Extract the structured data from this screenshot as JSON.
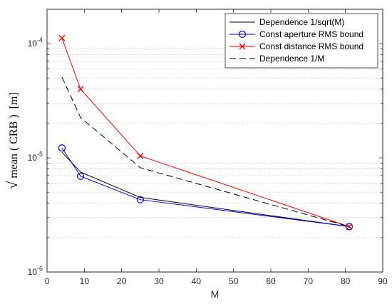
{
  "chart_data": {
    "type": "line",
    "xlabel": "M",
    "ylabel": {
      "sqrt_symbol": "√",
      "function_name": "mean",
      "open_paren": "(",
      "argument": "CRB",
      "close_paren": ")",
      "unit": "[m]"
    },
    "xscale": "linear",
    "yscale": "log",
    "xlim": [
      0,
      90
    ],
    "ylim": [
      1e-06,
      0.0002
    ],
    "xticks": [
      0,
      10,
      20,
      30,
      40,
      50,
      60,
      70,
      80,
      90
    ],
    "xtick_labels": [
      "0",
      "10",
      "20",
      "30",
      "40",
      "50",
      "60",
      "70",
      "80",
      "90"
    ],
    "yticks": [
      {
        "value": 1e-06,
        "base": "10",
        "exp": "-6"
      },
      {
        "value": 1e-05,
        "base": "10",
        "exp": "-5"
      },
      {
        "value": 0.0001,
        "base": "10",
        "exp": "-4"
      }
    ],
    "grid": "y-minor dotted",
    "legend_position": "top-right",
    "series": [
      {
        "name": "Dependence 1/sqrt(M)",
        "color": "#000000",
        "line": "solid",
        "marker": "none",
        "x": [
          4,
          9,
          25,
          81
        ],
        "y": [
          1.12e-05,
          7.5e-06,
          4.5e-06,
          2.5e-06
        ]
      },
      {
        "name": "Const aperture RMS bound",
        "color": "#0000ff",
        "line": "solid",
        "marker": "circle",
        "x": [
          4,
          9,
          25,
          81
        ],
        "y": [
          1.22e-05,
          6.9e-06,
          4.3e-06,
          2.5e-06
        ]
      },
      {
        "name": "Const distance RMS bound",
        "color": "#ff0000",
        "line": "solid",
        "marker": "x",
        "x": [
          4,
          9,
          25,
          81
        ],
        "y": [
          0.000112,
          4e-05,
          1.04e-05,
          2.5e-06
        ]
      },
      {
        "name": "Dependence 1/M",
        "color": "#000000",
        "line": "dashed",
        "marker": "none",
        "x": [
          4,
          9,
          25,
          81
        ],
        "y": [
          5.1e-05,
          2.25e-05,
          8.2e-06,
          2.5e-06
        ]
      }
    ]
  }
}
